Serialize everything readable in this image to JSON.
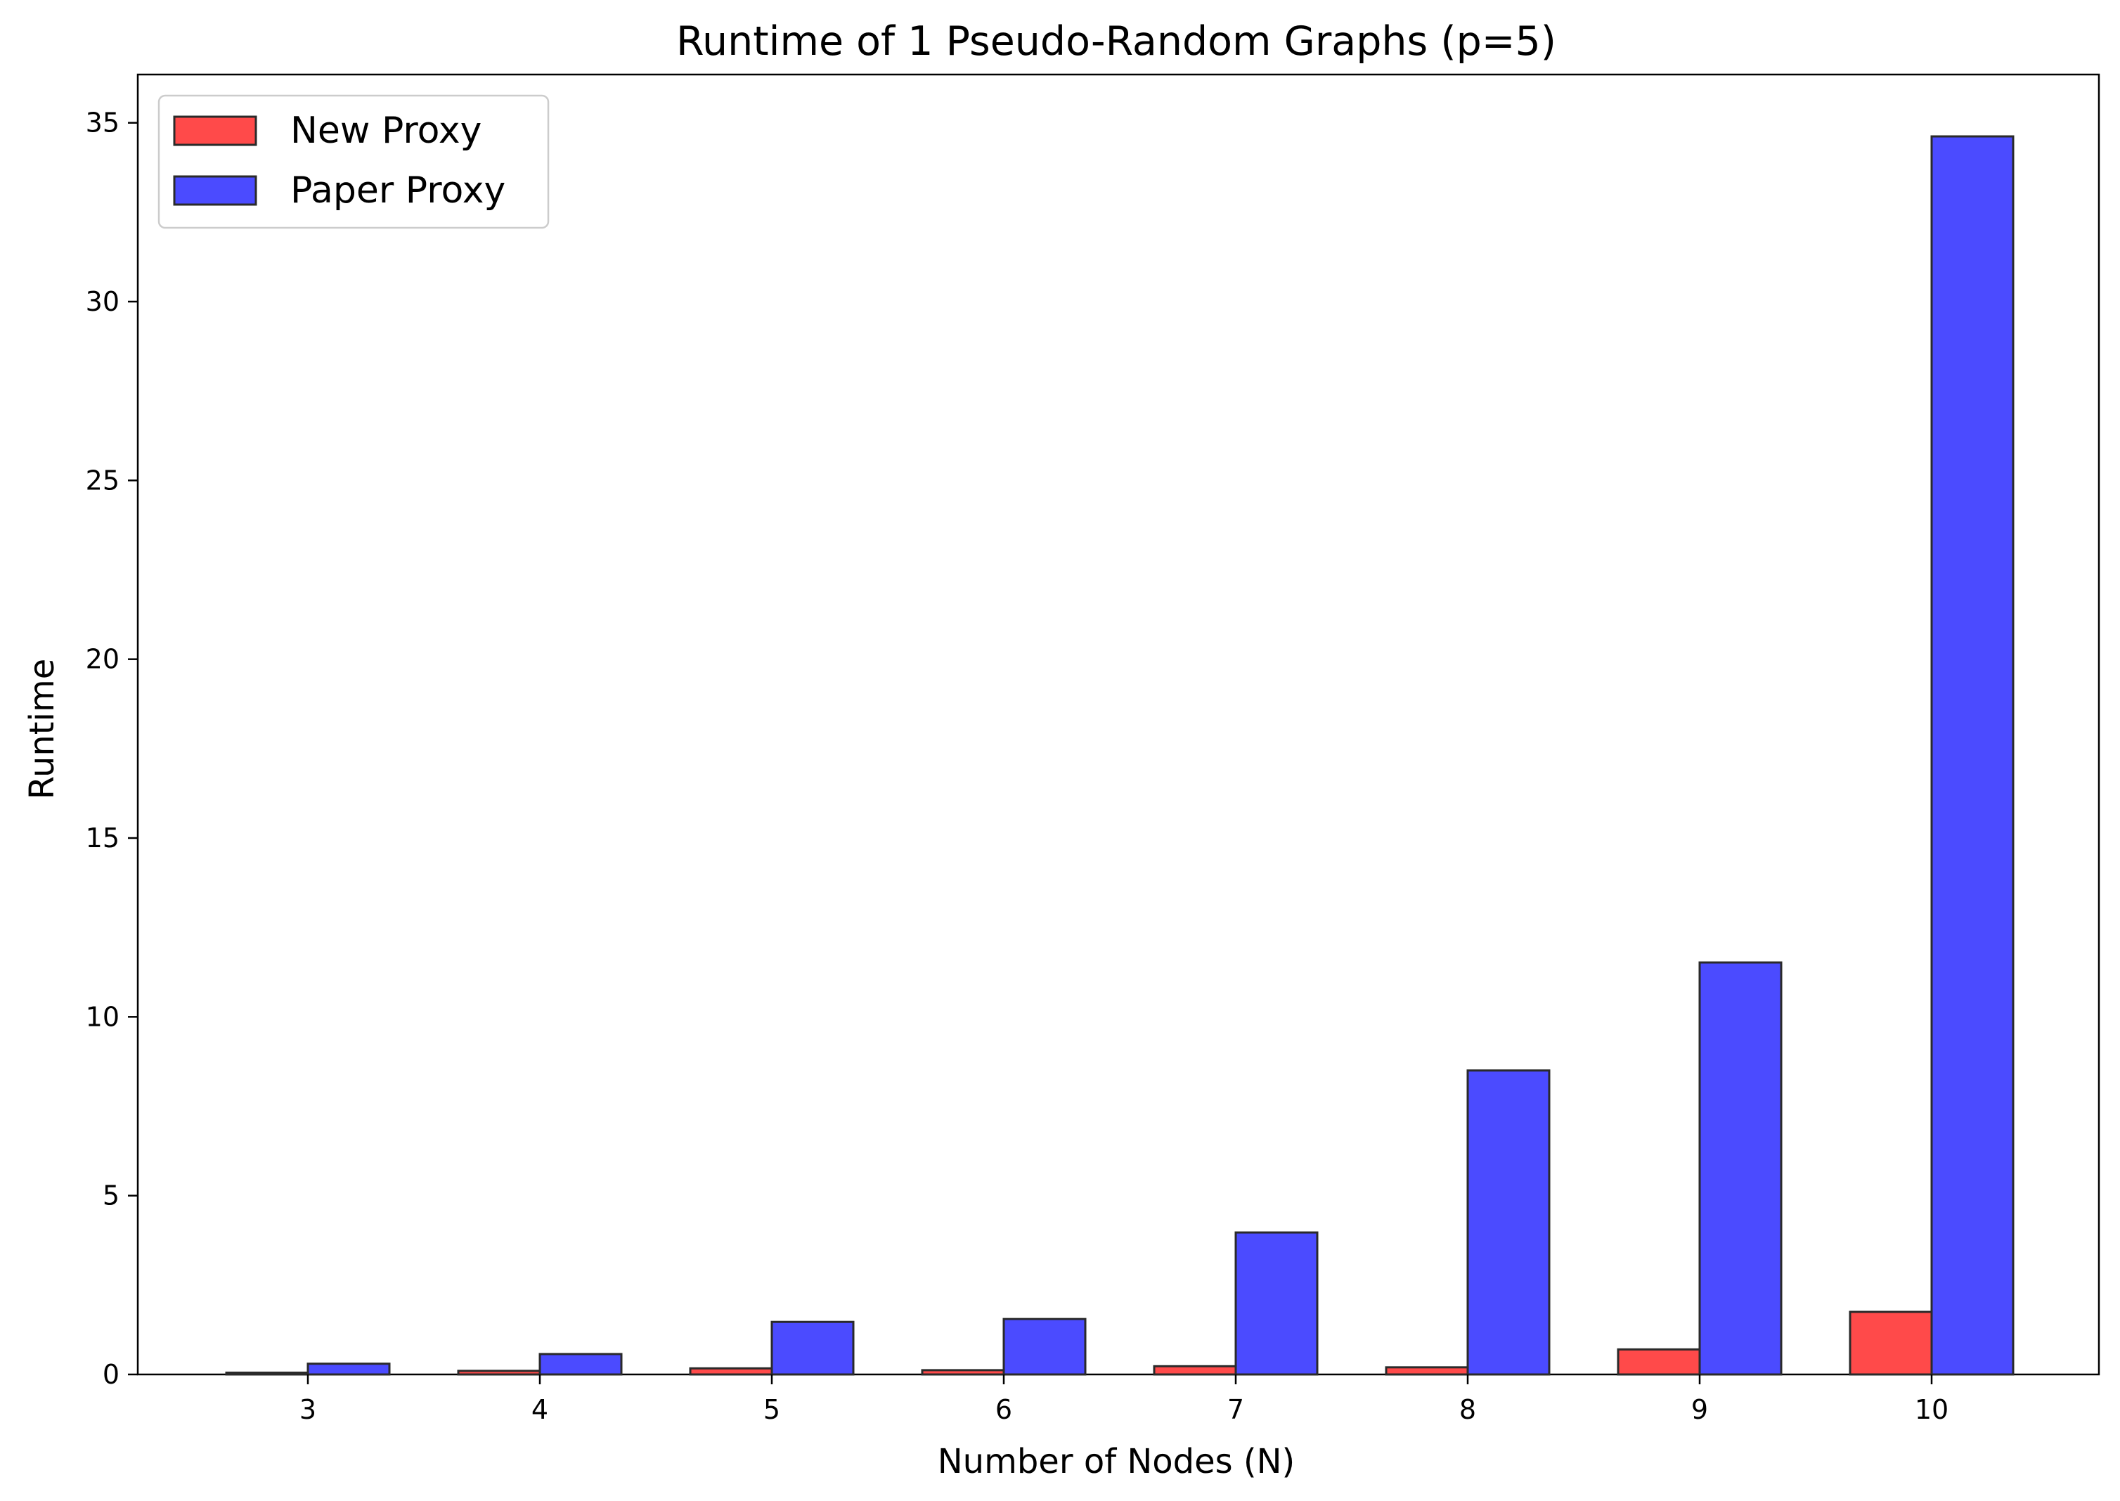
{
  "chart_data": {
    "type": "bar",
    "title": "Runtime of 1 Pseudo-Random Graphs (p=5)",
    "xlabel": "Number of Nodes (N)",
    "ylabel": "Runtime",
    "categories": [
      "3",
      "4",
      "5",
      "6",
      "7",
      "8",
      "9",
      "10"
    ],
    "series": [
      {
        "name": "New Proxy",
        "color": "#ff4a4a",
        "values": [
          0.05,
          0.1,
          0.17,
          0.12,
          0.23,
          0.2,
          0.7,
          1.75
        ]
      },
      {
        "name": "Paper Proxy",
        "color": "#4b4bff",
        "values": [
          0.3,
          0.57,
          1.47,
          1.55,
          3.97,
          8.5,
          11.52,
          34.62
        ]
      }
    ],
    "ylim": [
      0,
      36.35
    ],
    "yticks": [
      0,
      5,
      10,
      15,
      20,
      25,
      30,
      35
    ],
    "grid": false,
    "legend_position": "top-left"
  }
}
